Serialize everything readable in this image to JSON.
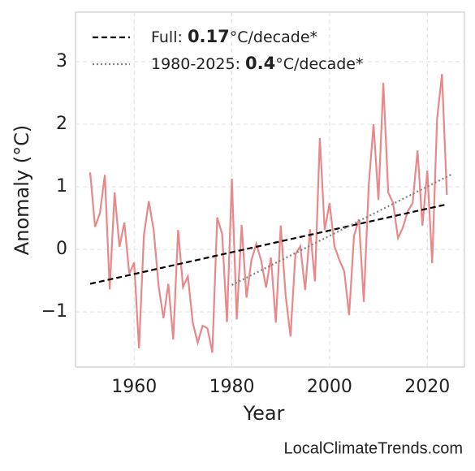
{
  "chart_data": {
    "type": "line",
    "xlabel": "Year",
    "ylabel": "Anomaly (°C)",
    "source": "LocalClimateTrends.com",
    "x": [
      1951,
      1952,
      1953,
      1954,
      1955,
      1956,
      1957,
      1958,
      1959,
      1960,
      1961,
      1962,
      1963,
      1964,
      1965,
      1966,
      1967,
      1968,
      1969,
      1970,
      1971,
      1972,
      1973,
      1974,
      1975,
      1976,
      1977,
      1978,
      1979,
      1980,
      1981,
      1982,
      1983,
      1984,
      1985,
      1986,
      1987,
      1988,
      1989,
      1990,
      1991,
      1992,
      1993,
      1994,
      1995,
      1996,
      1997,
      1998,
      1999,
      2000,
      2001,
      2002,
      2003,
      2004,
      2005,
      2006,
      2007,
      2008,
      2009,
      2010,
      2011,
      2012,
      2013,
      2014,
      2015,
      2016,
      2017,
      2018,
      2019,
      2020,
      2021,
      2022,
      2023,
      2024
    ],
    "values": [
      1.23,
      0.36,
      0.58,
      1.19,
      -0.64,
      0.91,
      0.04,
      0.43,
      -0.39,
      -0.21,
      -1.58,
      0.23,
      0.77,
      0.31,
      -0.58,
      -1.1,
      -0.55,
      -1.44,
      0.31,
      -0.6,
      -0.43,
      -1.17,
      -1.49,
      -1.22,
      -1.26,
      -1.65,
      0.51,
      0.25,
      -1.16,
      1.13,
      -1.12,
      0.39,
      -0.77,
      -0.17,
      0.09,
      -0.18,
      -0.61,
      -0.13,
      -1.17,
      0.38,
      -0.73,
      -1.39,
      -0.08,
      0.05,
      -0.65,
      0.32,
      -0.51,
      1.78,
      0.31,
      0.74,
      0.05,
      -0.17,
      -0.35,
      -1.05,
      0.22,
      0.48,
      -0.84,
      1.01,
      2.0,
      0.79,
      2.66,
      0.91,
      0.74,
      0.18,
      0.35,
      0.61,
      0.74,
      1.58,
      0.38,
      1.26,
      -0.22,
      2.08,
      2.8,
      0.87
    ],
    "color": "#e8888a",
    "series": [
      {
        "name": "Full: 0.17°C/decade*",
        "color": "#000000",
        "style": "dashed",
        "x": [
          1951,
          2024
        ],
        "values": [
          -0.55,
          0.72
        ]
      },
      {
        "name": "1980-2025: 0.4°C/decade*",
        "color": "#808080",
        "style": "dotted",
        "x": [
          1980,
          2025
        ],
        "values": [
          -0.57,
          1.2
        ]
      }
    ],
    "xlim": [
      1948,
      2027.6
    ],
    "ylim": [
      -1.88,
      3.79
    ],
    "xticks": [
      1960,
      1980,
      2000,
      2020
    ],
    "yticks": [
      {
        "value": -1,
        "label": "−1"
      },
      0,
      1,
      2,
      3
    ],
    "grid": true,
    "legend": "upper left"
  }
}
